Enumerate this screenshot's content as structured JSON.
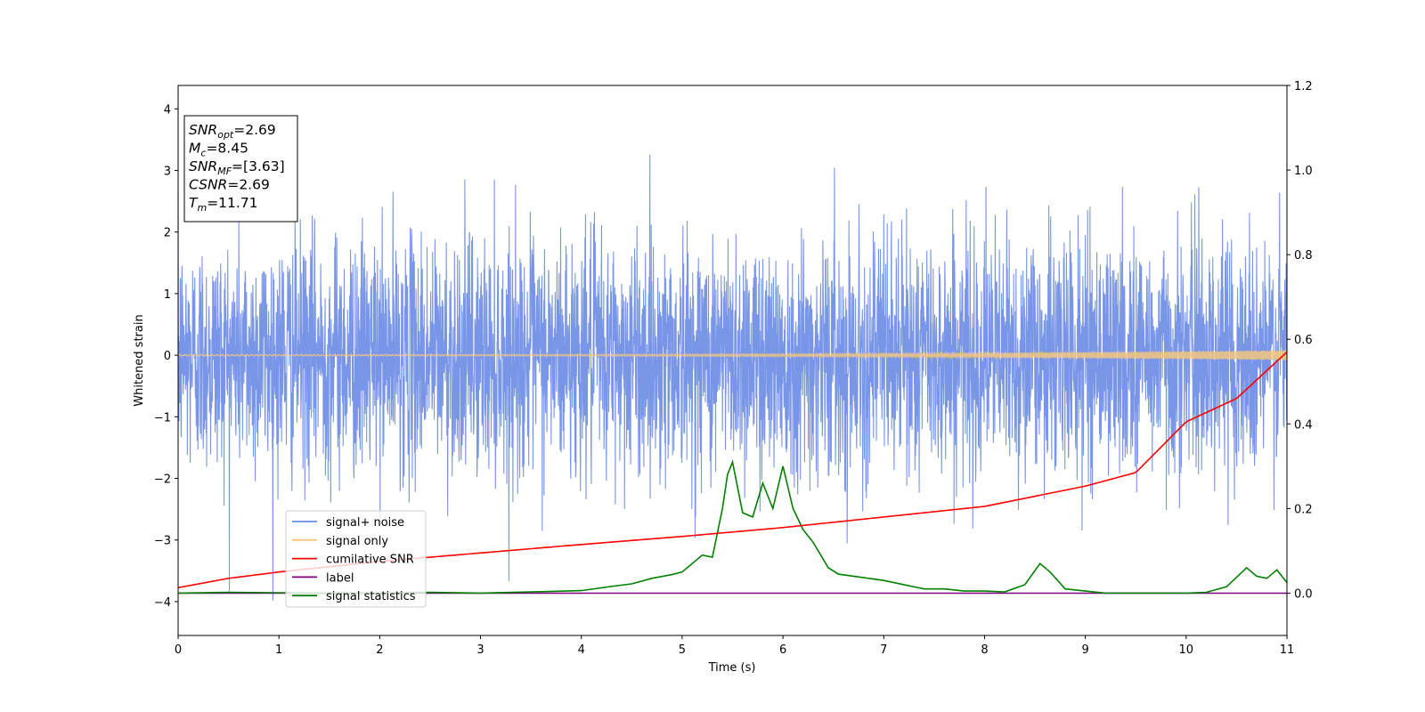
{
  "chart_data": {
    "type": "line",
    "title": "",
    "xlabel": "Time (s)",
    "ylabel": "Whitened strain",
    "y2label": "",
    "xlim": [
      0,
      11
    ],
    "ylim": [
      -4.55,
      4.38
    ],
    "y2lim": [
      -0.1,
      1.2
    ],
    "xticks": [
      "0",
      "1",
      "2",
      "3",
      "4",
      "5",
      "6",
      "7",
      "8",
      "9",
      "10",
      "11"
    ],
    "yticks": [
      "4",
      "3",
      "2",
      "1",
      "0",
      "−1",
      "−2",
      "−3",
      "−4"
    ],
    "y2ticks": [
      "1.2",
      "1.0",
      "0.8",
      "0.6",
      "0.4",
      "0.2",
      "0.0"
    ],
    "grid": false,
    "legend_position": "lower-left",
    "annotation": {
      "lines": [
        {
          "base": "SNR",
          "sub": "opt",
          "rest": "=2.69"
        },
        {
          "base": "M",
          "sub": "c",
          "rest": "=8.45"
        },
        {
          "base": "SNR",
          "sub": "MF",
          "rest": "=[3.63]"
        },
        {
          "base": "CSNR",
          "sub": "",
          "rest": "=2.69"
        },
        {
          "base": "T",
          "sub": "m",
          "rest": "=11.71"
        }
      ]
    },
    "series": [
      {
        "name": "signal+ noise",
        "color": "#6d8ce6",
        "axis": "left",
        "kind": "noise",
        "sigma": 0.95,
        "range": [
          -4.15,
          3.95
        ]
      },
      {
        "name": "signal only",
        "color": "#f5c77e",
        "axis": "left",
        "kind": "chirp",
        "amplitude_end": 0.08
      },
      {
        "name": "cumilative SNR",
        "color": "#ff0000",
        "axis": "right",
        "x": [
          0,
          0.5,
          1,
          2,
          3,
          4,
          5,
          6,
          7,
          8,
          9,
          9.5,
          10,
          10.5,
          11
        ],
        "y": [
          0.013,
          0.035,
          0.05,
          0.075,
          0.095,
          0.115,
          0.134,
          0.155,
          0.18,
          0.205,
          0.253,
          0.285,
          0.405,
          0.46,
          0.57
        ]
      },
      {
        "name": "label",
        "color": "#800080",
        "axis": "right",
        "x": [
          0,
          11
        ],
        "y": [
          0,
          0
        ]
      },
      {
        "name": "signal statistics",
        "color": "#008000",
        "axis": "right",
        "x": [
          0,
          0.5,
          1,
          2,
          2.5,
          3,
          3.5,
          4,
          4.3,
          4.5,
          4.7,
          4.9,
          5.0,
          5.1,
          5.2,
          5.3,
          5.4,
          5.45,
          5.5,
          5.6,
          5.7,
          5.8,
          5.9,
          6.0,
          6.1,
          6.2,
          6.3,
          6.45,
          6.55,
          6.7,
          6.85,
          7.0,
          7.2,
          7.4,
          7.6,
          7.8,
          8.0,
          8.2,
          8.4,
          8.55,
          8.65,
          8.8,
          9.0,
          9.2,
          9.4,
          9.6,
          9.8,
          10.0,
          10.2,
          10.4,
          10.6,
          10.7,
          10.8,
          10.9,
          11.0
        ],
        "y": [
          0.0,
          0.002,
          0.001,
          0.0,
          0.002,
          0.0,
          0.003,
          0.006,
          0.016,
          0.022,
          0.035,
          0.044,
          0.05,
          0.07,
          0.09,
          0.085,
          0.2,
          0.28,
          0.31,
          0.19,
          0.18,
          0.26,
          0.2,
          0.3,
          0.2,
          0.15,
          0.12,
          0.06,
          0.045,
          0.04,
          0.035,
          0.03,
          0.02,
          0.01,
          0.01,
          0.005,
          0.005,
          0.003,
          0.02,
          0.07,
          0.05,
          0.01,
          0.005,
          0.0,
          0.0,
          0.0,
          0.0,
          0.0,
          0.002,
          0.015,
          0.06,
          0.04,
          0.035,
          0.055,
          0.025
        ]
      }
    ]
  }
}
